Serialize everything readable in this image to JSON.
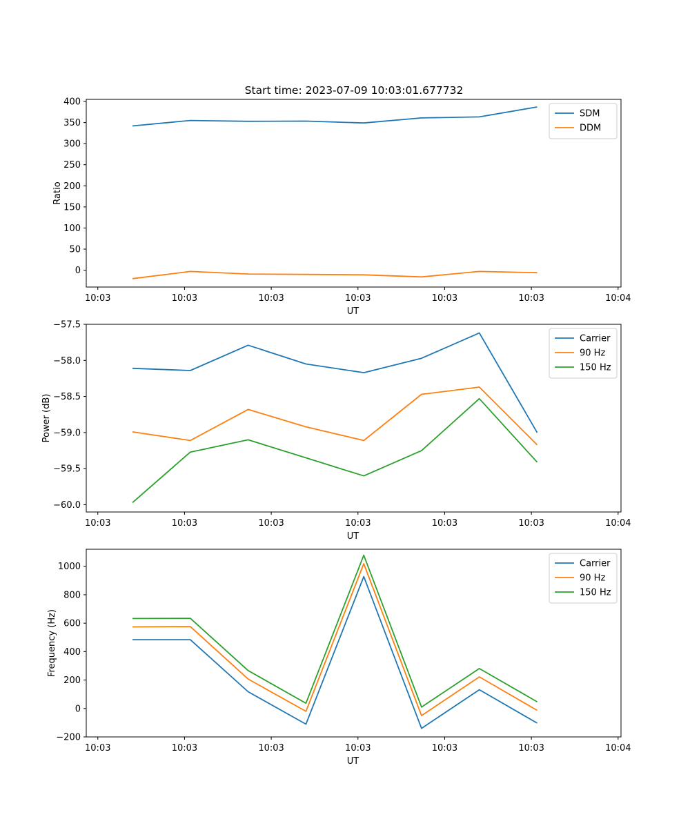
{
  "figure_title": "Start time: 2023-07-09 10:03:01.677732",
  "chart_data": [
    {
      "type": "line",
      "title": "Start time: 2023-07-09 10:03:01.677732",
      "xlabel": "UT",
      "ylabel": "Ratio",
      "x": [
        1,
        2,
        3,
        4,
        5,
        6,
        7,
        8
      ],
      "xlim": [
        0.2,
        9.45
      ],
      "xticks": [
        0.4,
        1.9,
        3.4,
        4.9,
        6.4,
        7.9,
        9.4
      ],
      "xtick_labels": [
        "10:03",
        "10:03",
        "10:03",
        "10:03",
        "10:03",
        "10:03",
        "10:04"
      ],
      "ylim": [
        -40,
        405
      ],
      "yticks": [
        0,
        50,
        100,
        150,
        200,
        250,
        300,
        350,
        400
      ],
      "ytick_labels": [
        "0",
        "50",
        "100",
        "150",
        "200",
        "250",
        "300",
        "350",
        "400"
      ],
      "legend_position": "top-right",
      "series": [
        {
          "name": "SDM",
          "color": "#1f77b4",
          "values": [
            342,
            355,
            353,
            353.5,
            349,
            361,
            363.5,
            387
          ]
        },
        {
          "name": "DDM",
          "color": "#ff7f0e",
          "values": [
            -20,
            -3,
            -9,
            -10,
            -11,
            -16,
            -3,
            -6
          ]
        }
      ]
    },
    {
      "type": "line",
      "title": "",
      "xlabel": "UT",
      "ylabel": "Power (dB)",
      "x": [
        1,
        2,
        3,
        4,
        5,
        6,
        7,
        8
      ],
      "xlim": [
        0.2,
        9.45
      ],
      "xticks": [
        0.4,
        1.9,
        3.4,
        4.9,
        6.4,
        7.9,
        9.4
      ],
      "xtick_labels": [
        "10:03",
        "10:03",
        "10:03",
        "10:03",
        "10:03",
        "10:03",
        "10:04"
      ],
      "ylim": [
        -60.1,
        -57.5
      ],
      "yticks": [
        -60.0,
        -59.5,
        -59.0,
        -58.5,
        -58.0,
        -57.5
      ],
      "ytick_labels": [
        "−60.0",
        "−59.5",
        "−59.0",
        "−58.5",
        "−58.0",
        "−57.5"
      ],
      "legend_position": "top-right",
      "series": [
        {
          "name": "Carrier",
          "color": "#1f77b4",
          "values": [
            -58.11,
            -58.14,
            -57.79,
            -58.05,
            -58.17,
            -57.97,
            -57.62,
            -59.0
          ]
        },
        {
          "name": "90 Hz",
          "color": "#ff7f0e",
          "values": [
            -58.99,
            -59.11,
            -58.68,
            -58.92,
            -59.11,
            -58.47,
            -58.37,
            -59.17
          ]
        },
        {
          "name": "150 Hz",
          "color": "#2ca02c",
          "values": [
            -59.97,
            -59.27,
            -59.1,
            -59.35,
            -59.6,
            -59.25,
            -58.53,
            -59.41
          ]
        }
      ]
    },
    {
      "type": "line",
      "title": "",
      "xlabel": "UT",
      "ylabel": "Frequency (Hz)",
      "x": [
        1,
        2,
        3,
        4,
        5,
        6,
        7,
        8
      ],
      "xlim": [
        0.2,
        9.45
      ],
      "xticks": [
        0.4,
        1.9,
        3.4,
        4.9,
        6.4,
        7.9,
        9.4
      ],
      "xtick_labels": [
        "10:03",
        "10:03",
        "10:03",
        "10:03",
        "10:03",
        "10:03",
        "10:04"
      ],
      "ylim": [
        -200,
        1120
      ],
      "yticks": [
        -200,
        0,
        200,
        400,
        600,
        800,
        1000
      ],
      "ytick_labels": [
        "−200",
        "0",
        "200",
        "400",
        "600",
        "800",
        "1000"
      ],
      "legend_position": "top-right",
      "series": [
        {
          "name": "Carrier",
          "color": "#1f77b4",
          "values": [
            484,
            484,
            118,
            -110,
            928,
            -140,
            132,
            -103
          ]
        },
        {
          "name": "90 Hz",
          "color": "#ff7f0e",
          "values": [
            574,
            576,
            207,
            -20,
            1018,
            -50,
            222,
            -13
          ]
        },
        {
          "name": "150 Hz",
          "color": "#2ca02c",
          "values": [
            633,
            634,
            267,
            37,
            1078,
            10,
            281,
            47
          ]
        }
      ]
    }
  ]
}
